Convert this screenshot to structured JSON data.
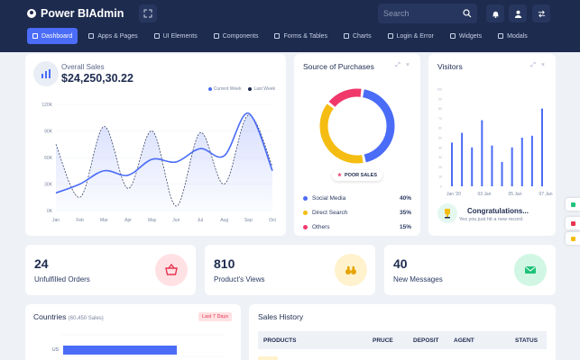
{
  "app": {
    "brand": "Power BIAdmin"
  },
  "search": {
    "placeholder": "Search"
  },
  "nav": [
    {
      "label": "Dashboard",
      "active": true
    },
    {
      "label": "Apps & Pages"
    },
    {
      "label": "UI Elements"
    },
    {
      "label": "Components"
    },
    {
      "label": "Forms & Tables"
    },
    {
      "label": "Charts"
    },
    {
      "label": "Login & Error"
    },
    {
      "label": "Widgets"
    },
    {
      "label": "Modals"
    }
  ],
  "sales": {
    "label": "Overall Sales",
    "amount": "$24,250,30.22",
    "legend_current": "Current Week",
    "legend_last": "Last Week",
    "y_ticks": [
      "120K",
      "90K",
      "60K",
      "30K",
      "0K"
    ],
    "months": [
      "Jan",
      "Feb",
      "Mar",
      "Apr",
      "May",
      "Jun",
      "Jul",
      "Aug",
      "Sep",
      "Oct"
    ]
  },
  "chart_data": [
    {
      "type": "area",
      "ylim": [
        0,
        120
      ],
      "x": [
        "Jan",
        "Feb",
        "Mar",
        "Apr",
        "May",
        "Jun",
        "Jul",
        "Aug",
        "Sep",
        "Oct"
      ],
      "series": [
        {
          "name": "Current Week",
          "values": [
            20,
            30,
            45,
            40,
            58,
            55,
            70,
            62,
            110,
            45
          ]
        },
        {
          "name": "Last Week",
          "values": [
            75,
            15,
            95,
            25,
            90,
            5,
            88,
            30,
            108,
            50
          ]
        }
      ],
      "yticks": [
        "120K",
        "90K",
        "60K",
        "30K",
        "0K"
      ]
    },
    {
      "type": "pie",
      "title": "Source of Purchases",
      "categories": [
        "Social Media",
        "Direct Search",
        "Others"
      ],
      "values": [
        40,
        35,
        15
      ]
    },
    {
      "type": "bar",
      "title": "Visitors",
      "xticks": [
        "Jan '20",
        "03 Jan",
        "05 Jan",
        "07 Jan"
      ],
      "values": [
        45,
        55,
        40,
        68,
        42,
        25,
        40,
        50,
        52,
        80
      ],
      "ylim": [
        0,
        100
      ]
    }
  ],
  "purchases": {
    "title": "Source of Purchases",
    "badge": "POOR SALES",
    "rows": [
      {
        "label": "Social Media",
        "value": "40%",
        "color": "#4a6cf7"
      },
      {
        "label": "Direct Search",
        "value": "35%",
        "color": "#f5bd12"
      },
      {
        "label": "Others",
        "value": "15%",
        "color": "#f0386b"
      }
    ]
  },
  "visitors": {
    "title": "Visitors",
    "xticks": [
      "Jan '20",
      "03 Jan",
      "05 Jan",
      "07 Jan"
    ],
    "congrats_title": "Congratulations...",
    "congrats_sub": "Yes you just hit a new record."
  },
  "stats": [
    {
      "value": "24",
      "label": "Unfulfilled Orders",
      "color": "#ffe1e4",
      "icon": "basket-icon",
      "icon_color": "#e8354e"
    },
    {
      "value": "810",
      "label": "Product's Views",
      "color": "#fff2cc",
      "icon": "binoculars-icon",
      "icon_color": "#e6a400"
    },
    {
      "value": "40",
      "label": "New Messages",
      "color": "#d1f7e4",
      "icon": "mail-icon",
      "icon_color": "#20c37a"
    }
  ],
  "countries": {
    "title": "Countries",
    "subtitle": "(60,450 Sales)",
    "badge": "Last 7 Days",
    "bar_label": "US"
  },
  "history": {
    "title": "Sales History",
    "columns": [
      "PRODUCTS",
      "PRUCE",
      "DEPOSIT",
      "AGENT",
      "STATUS"
    ]
  }
}
